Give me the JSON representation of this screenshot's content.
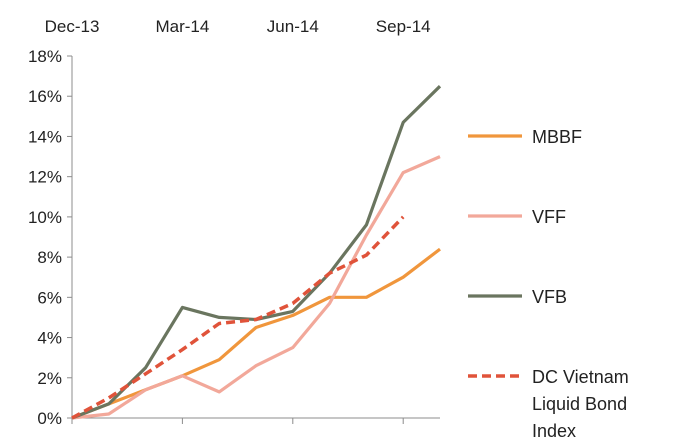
{
  "chart_data": {
    "type": "line",
    "title": "",
    "xlabel": "",
    "ylabel": "",
    "x_tick_labels": [
      "Dec-13",
      "Mar-14",
      "Jun-14",
      "Sep-14"
    ],
    "x_tick_positions": [
      0,
      3,
      6,
      9
    ],
    "xlim": [
      0,
      10
    ],
    "ylim": [
      0,
      18
    ],
    "y_ticks": [
      0,
      2,
      4,
      6,
      8,
      10,
      12,
      14,
      16,
      18
    ],
    "y_tick_labels": [
      "0%",
      "2%",
      "4%",
      "6%",
      "8%",
      "10%",
      "12%",
      "14%",
      "16%",
      "18%"
    ],
    "grid": false,
    "legend_position": "right",
    "series": [
      {
        "name": "MBBF",
        "legend_lines": [
          "MBBF"
        ],
        "color": "#F0963C",
        "style": "solid",
        "x": [
          0,
          1,
          2,
          3,
          4,
          5,
          6,
          7,
          8,
          9,
          10
        ],
        "values": [
          0.0,
          0.7,
          1.4,
          2.1,
          2.9,
          4.5,
          5.1,
          6.0,
          6.0,
          7.0,
          8.4
        ]
      },
      {
        "name": "VFF",
        "legend_lines": [
          "VFF"
        ],
        "color": "#F2A89A",
        "style": "solid",
        "x": [
          0,
          1,
          2,
          3,
          4,
          5,
          6,
          7,
          8,
          9,
          10
        ],
        "values": [
          0.0,
          0.2,
          1.4,
          2.1,
          1.3,
          2.6,
          3.5,
          5.7,
          9.1,
          12.2,
          13.0
        ]
      },
      {
        "name": "VFB",
        "legend_lines": [
          "VFB"
        ],
        "color": "#6A755F",
        "style": "solid",
        "x": [
          0,
          1,
          2,
          3,
          4,
          5,
          6,
          7,
          8,
          9,
          10
        ],
        "values": [
          0.0,
          0.7,
          2.5,
          5.5,
          5.0,
          4.9,
          5.3,
          7.2,
          9.6,
          14.7,
          16.5
        ]
      },
      {
        "name": "DC Vietnam Liquid Bond Index",
        "legend_lines": [
          "DC Vietnam",
          "Liquid Bond",
          "Index"
        ],
        "color": "#E0533A",
        "style": "dashed",
        "x": [
          0,
          1,
          2,
          3,
          4,
          5,
          6,
          7,
          8,
          9
        ],
        "values": [
          0.0,
          1.0,
          2.2,
          3.4,
          4.7,
          4.9,
          5.7,
          7.2,
          8.1,
          10.0
        ]
      }
    ]
  }
}
